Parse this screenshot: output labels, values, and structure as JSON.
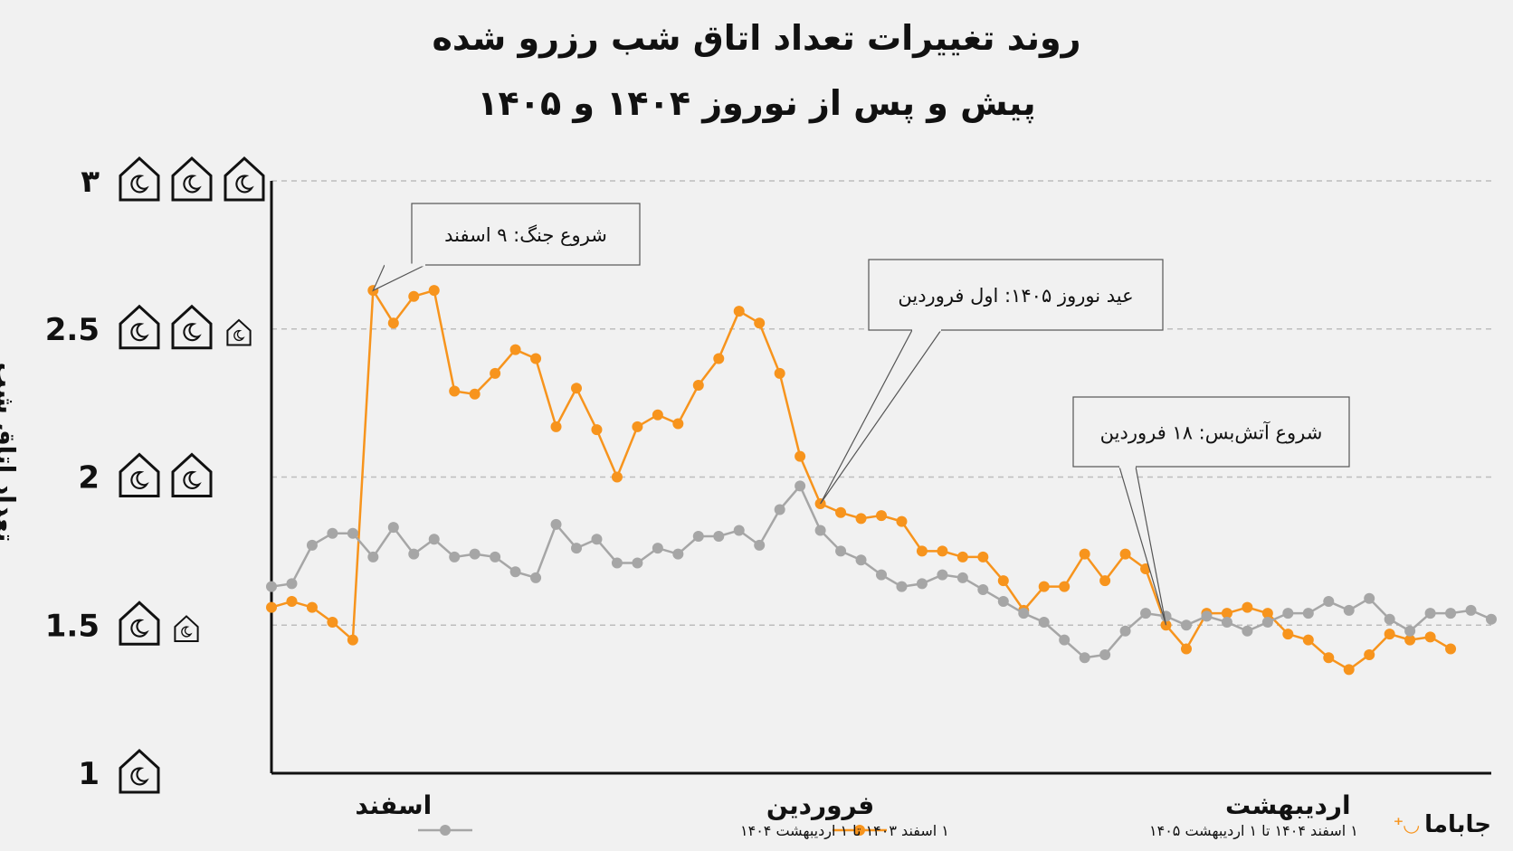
{
  "title_line1": "روند تغییرات تعداد اتاق شب رزرو شده",
  "title_line2": "پیش و پس از نوروز ۱۴۰۴ و ۱۴۰۵",
  "brand": "جاباما",
  "colors": {
    "orange": "#f7941d",
    "gray": "#a6a6a6",
    "axis": "#111111",
    "grid": "#bdbdbd"
  },
  "chart_data": {
    "type": "line",
    "ylabel": "تعداد اتاق شب",
    "ylim": [
      1,
      3
    ],
    "y_ticks": [
      {
        "value": 1,
        "label": "1",
        "houses": 1
      },
      {
        "value": 1.5,
        "label": "1.5",
        "houses": 1.5
      },
      {
        "value": 2,
        "label": "2",
        "houses": 2
      },
      {
        "value": 2.5,
        "label": "2.5",
        "houses": 2.5
      },
      {
        "value": 3,
        "label": "۳",
        "houses": 3
      }
    ],
    "grid": true,
    "x_count": 61,
    "x_labels": [
      {
        "index": 6,
        "label": "اسفند"
      },
      {
        "index": 27,
        "label": "فروردین"
      },
      {
        "index": 50,
        "label": "اردیبهشت"
      }
    ],
    "series": [
      {
        "name": "۱ اسفند ۱۴۰۴ تا ۱ اردیبهشت ۱۴۰۵",
        "color": "#f7941d",
        "values": [
          1.56,
          1.58,
          1.56,
          1.51,
          1.45,
          2.63,
          2.52,
          2.61,
          2.63,
          2.29,
          2.28,
          2.35,
          2.43,
          2.4,
          2.17,
          2.3,
          2.16,
          2.0,
          2.17,
          2.21,
          2.18,
          2.31,
          2.4,
          2.56,
          2.52,
          2.35,
          2.07,
          1.91,
          1.88,
          1.86,
          1.87,
          1.85,
          1.75,
          1.75,
          1.73,
          1.73,
          1.65,
          1.55,
          1.63,
          1.63,
          1.74,
          1.65,
          1.74,
          1.69,
          1.5,
          1.42,
          1.54,
          1.54,
          1.56,
          1.54,
          1.47,
          1.45,
          1.39,
          1.35,
          1.4,
          1.47,
          1.45,
          1.46,
          1.42
        ]
      },
      {
        "name": "۱ اسفند ۱۴۰۳ تا ۱ اردیبهشت ۱۴۰۴",
        "color": "#a6a6a6",
        "values": [
          1.63,
          1.64,
          1.77,
          1.81,
          1.81,
          1.73,
          1.83,
          1.74,
          1.79,
          1.73,
          1.74,
          1.73,
          1.68,
          1.66,
          1.84,
          1.76,
          1.79,
          1.71,
          1.71,
          1.76,
          1.74,
          1.8,
          1.8,
          1.82,
          1.77,
          1.89,
          1.97,
          1.82,
          1.75,
          1.72,
          1.67,
          1.63,
          1.64,
          1.67,
          1.66,
          1.62,
          1.58,
          1.54,
          1.51,
          1.45,
          1.39,
          1.4,
          1.48,
          1.54,
          1.53,
          1.5,
          1.53,
          1.51,
          1.48,
          1.51,
          1.54,
          1.54,
          1.58,
          1.55,
          1.59,
          1.52,
          1.48,
          1.54,
          1.54,
          1.55,
          1.52
        ]
      }
    ],
    "annotations": [
      {
        "text": "شروع جنگ: ۹ اسفند",
        "index": 5
      },
      {
        "text": "عید نوروز ۱۴۰۵: اول فروردین",
        "index": 27
      },
      {
        "text": "شروع آتش‌بس: ۱۸ فروردین",
        "index": 44
      }
    ]
  }
}
